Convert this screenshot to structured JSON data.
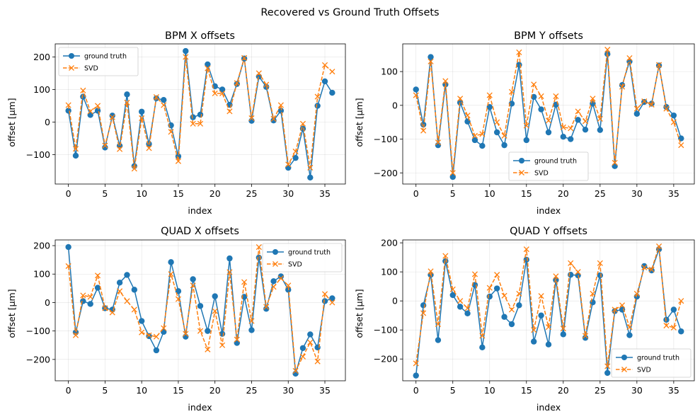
{
  "figure": {
    "suptitle": "Recovered vs Ground Truth Offsets"
  },
  "colors": {
    "ground_truth": "#1f77b4",
    "svd": "#ff7f0e"
  },
  "chart_data": [
    {
      "id": "bpmx",
      "type": "line",
      "title": "BPM X offsets",
      "xlabel": "index",
      "ylabel": "offset [μm]",
      "xlim": [
        -1.8,
        37.8
      ],
      "ylim": [
        -190,
        240
      ],
      "xticks": [
        0,
        5,
        10,
        15,
        20,
        25,
        30,
        35
      ],
      "yticks": [
        -100,
        0,
        100,
        200
      ],
      "legend": {
        "loc": "upper-left",
        "labels": [
          "ground truth",
          "SVD"
        ]
      },
      "x": [
        0,
        1,
        2,
        3,
        4,
        5,
        6,
        7,
        8,
        9,
        10,
        11,
        12,
        13,
        14,
        15,
        16,
        17,
        18,
        19,
        20,
        21,
        22,
        23,
        24,
        25,
        26,
        27,
        28,
        29,
        30,
        31,
        32,
        33,
        34,
        35,
        36
      ],
      "series": [
        {
          "name": "ground truth",
          "marker": "o",
          "values": [
            35,
            -103,
            78,
            22,
            35,
            -78,
            20,
            -73,
            85,
            -135,
            32,
            -67,
            73,
            68,
            -10,
            -105,
            218,
            15,
            23,
            177,
            110,
            100,
            53,
            117,
            195,
            4,
            140,
            108,
            5,
            35,
            -140,
            -110,
            -20,
            -170,
            50,
            125,
            90
          ]
        },
        {
          "name": "SVD",
          "marker": "x",
          "values": [
            52,
            -82,
            97,
            33,
            50,
            -72,
            15,
            -83,
            60,
            -143,
            12,
            -80,
            77,
            52,
            -30,
            -120,
            200,
            -5,
            -5,
            165,
            88,
            88,
            33,
            120,
            197,
            12,
            150,
            115,
            10,
            52,
            -130,
            -90,
            -5,
            -140,
            78,
            175,
            155
          ]
        }
      ]
    },
    {
      "id": "bpmy",
      "type": "line",
      "title": "BPM Y offsets",
      "xlabel": "index",
      "ylabel": "offset [μm]",
      "xlim": [
        -1.8,
        37.8
      ],
      "ylim": [
        -233,
        182
      ],
      "xticks": [
        0,
        5,
        10,
        15,
        20,
        25,
        30,
        35
      ],
      "yticks": [
        -200,
        -100,
        0,
        100
      ],
      "legend": {
        "loc": "lower-center",
        "labels": [
          "ground truth",
          "SVD"
        ]
      },
      "x": [
        0,
        1,
        2,
        3,
        4,
        5,
        6,
        7,
        8,
        9,
        10,
        11,
        12,
        13,
        14,
        15,
        16,
        17,
        18,
        19,
        20,
        21,
        22,
        23,
        24,
        25,
        26,
        27,
        28,
        29,
        30,
        31,
        32,
        33,
        34,
        35,
        36
      ],
      "series": [
        {
          "name": "ground truth",
          "marker": "o",
          "values": [
            47,
            -57,
            143,
            -118,
            62,
            -212,
            8,
            -48,
            -103,
            -120,
            -5,
            -80,
            -118,
            5,
            120,
            -103,
            25,
            -12,
            -80,
            2,
            -93,
            -100,
            -43,
            -72,
            5,
            -73,
            152,
            -180,
            60,
            130,
            -25,
            10,
            5,
            118,
            -5,
            -30,
            -98
          ]
        },
        {
          "name": "SVD",
          "marker": "x",
          "values": [
            30,
            -75,
            130,
            -110,
            72,
            -200,
            20,
            -30,
            -90,
            -85,
            30,
            -50,
            -90,
            40,
            157,
            -60,
            62,
            27,
            -45,
            27,
            -65,
            -68,
            -18,
            -47,
            20,
            -40,
            165,
            -170,
            55,
            140,
            -10,
            12,
            2,
            120,
            -10,
            -50,
            -118
          ]
        }
      ]
    },
    {
      "id": "quadx",
      "type": "line",
      "title": "QUAD X offsets",
      "xlabel": "index",
      "ylabel": "offset [μm]",
      "xlim": [
        -1.8,
        37.8
      ],
      "ylim": [
        -275,
        220
      ],
      "xticks": [
        0,
        5,
        10,
        15,
        20,
        25,
        30,
        35
      ],
      "yticks": [
        -200,
        -100,
        0,
        100,
        200
      ],
      "legend": {
        "loc": "upper-right",
        "labels": [
          "ground truth",
          "SVD"
        ]
      },
      "x": [
        0,
        1,
        2,
        3,
        4,
        5,
        6,
        7,
        8,
        9,
        10,
        11,
        12,
        13,
        14,
        15,
        16,
        17,
        18,
        19,
        20,
        21,
        22,
        23,
        24,
        25,
        26,
        27,
        28,
        29,
        30,
        31,
        32,
        33,
        34,
        35,
        36
      ],
      "series": [
        {
          "name": "ground truth",
          "marker": "o",
          "values": [
            195,
            -105,
            5,
            -5,
            52,
            -20,
            -25,
            70,
            97,
            45,
            -65,
            -118,
            -168,
            -103,
            142,
            40,
            -120,
            82,
            -12,
            -100,
            22,
            -110,
            155,
            -142,
            20,
            -97,
            158,
            -22,
            75,
            92,
            45,
            -250,
            -160,
            -112,
            -158,
            5,
            15
          ]
        },
        {
          "name": "SVD",
          "marker": "x",
          "values": [
            128,
            -115,
            25,
            20,
            95,
            -20,
            -35,
            40,
            5,
            -25,
            -105,
            -115,
            -120,
            -90,
            100,
            12,
            -110,
            60,
            -100,
            -165,
            -30,
            -150,
            107,
            -130,
            72,
            -65,
            195,
            -15,
            55,
            85,
            60,
            -240,
            -190,
            -140,
            -207,
            30,
            0
          ]
        }
      ]
    },
    {
      "id": "quady",
      "type": "line",
      "title": "QUAD Y offsets",
      "xlabel": "index",
      "ylabel": "offset [μm]",
      "xlim": [
        -1.8,
        37.8
      ],
      "ylim": [
        -275,
        210
      ],
      "xticks": [
        0,
        5,
        10,
        15,
        20,
        25,
        30,
        35
      ],
      "yticks": [
        -200,
        -100,
        0,
        100,
        200
      ],
      "legend": {
        "loc": "lower-right",
        "labels": [
          "ground truth",
          "SVD"
        ]
      },
      "x": [
        0,
        1,
        2,
        3,
        4,
        5,
        6,
        7,
        8,
        9,
        10,
        11,
        12,
        13,
        14,
        15,
        16,
        17,
        18,
        19,
        20,
        21,
        22,
        23,
        24,
        25,
        26,
        27,
        28,
        29,
        30,
        31,
        32,
        33,
        34,
        35,
        36
      ],
      "series": [
        {
          "name": "ground truth",
          "marker": "o",
          "values": [
            -257,
            -15,
            90,
            -135,
            137,
            20,
            -20,
            -43,
            55,
            -160,
            15,
            43,
            -55,
            -80,
            -15,
            142,
            -140,
            -50,
            -150,
            72,
            -115,
            90,
            88,
            -127,
            -5,
            88,
            -248,
            -35,
            -30,
            -118,
            15,
            120,
            105,
            178,
            -65,
            -30,
            -105
          ]
        },
        {
          "name": "SVD",
          "marker": "x",
          "values": [
            -215,
            -42,
            102,
            -80,
            155,
            40,
            0,
            -25,
            92,
            -120,
            45,
            90,
            18,
            -30,
            25,
            178,
            -100,
            17,
            -90,
            85,
            -95,
            130,
            100,
            -120,
            25,
            130,
            -225,
            -30,
            -15,
            -90,
            25,
            115,
            108,
            188,
            -85,
            -92,
            0
          ]
        }
      ]
    }
  ]
}
